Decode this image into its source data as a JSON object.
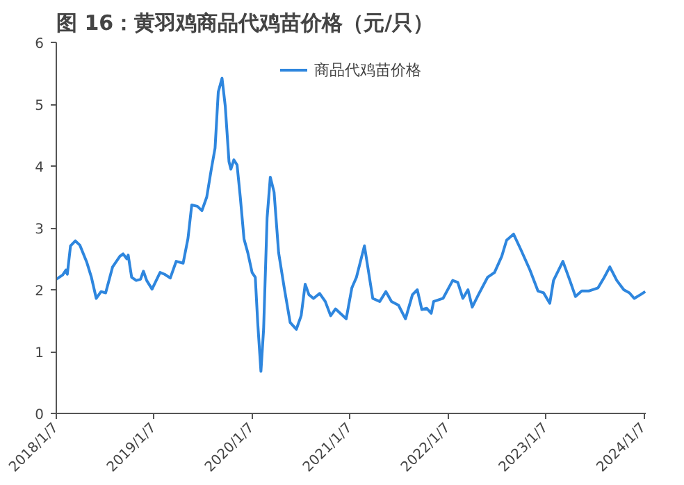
{
  "chart_data": {
    "type": "line",
    "title": "图 16：黄羽鸡商品代鸡苗价格（元/只）",
    "x": [
      "2018-01-07",
      "2018-01-31",
      "2018-02-12",
      "2018-02-17",
      "2018-03-01",
      "2018-03-19",
      "2018-04-05",
      "2018-05-01",
      "2018-05-18",
      "2018-06-05",
      "2018-06-23",
      "2018-07-10",
      "2018-08-05",
      "2018-09-01",
      "2018-09-13",
      "2018-09-27",
      "2018-10-02",
      "2018-10-15",
      "2018-11-01",
      "2018-11-17",
      "2018-11-28",
      "2018-12-10",
      "2018-12-30",
      "2019-01-29",
      "2019-02-15",
      "2019-03-08",
      "2019-03-30",
      "2019-04-25",
      "2019-05-13",
      "2019-05-27",
      "2019-06-17",
      "2019-07-04",
      "2019-07-22",
      "2019-08-08",
      "2019-08-22",
      "2019-09-03",
      "2019-09-17",
      "2019-09-29",
      "2019-10-13",
      "2019-10-20",
      "2019-10-31",
      "2019-11-12",
      "2019-11-24",
      "2019-12-08",
      "2019-12-22",
      "2020-01-07",
      "2020-01-19",
      "2020-01-28",
      "2020-02-09",
      "2020-02-19",
      "2020-03-03",
      "2020-03-15",
      "2020-03-29",
      "2020-04-15",
      "2020-05-06",
      "2020-05-28",
      "2020-06-20",
      "2020-07-08",
      "2020-07-23",
      "2020-08-06",
      "2020-08-23",
      "2020-09-15",
      "2020-10-06",
      "2020-10-26",
      "2020-11-13",
      "2020-12-23",
      "2021-01-13",
      "2021-01-30",
      "2021-03-01",
      "2021-04-01",
      "2021-04-27",
      "2021-05-20",
      "2021-06-10",
      "2021-07-06",
      "2021-08-01",
      "2021-08-27",
      "2021-09-14",
      "2021-10-01",
      "2021-10-19",
      "2021-11-05",
      "2021-11-14",
      "2021-12-19",
      "2022-01-24",
      "2022-02-12",
      "2022-03-03",
      "2022-03-22",
      "2022-04-07",
      "2022-04-30",
      "2022-06-03",
      "2022-06-29",
      "2022-07-26",
      "2022-08-13",
      "2022-09-08",
      "2022-10-04",
      "2022-11-08",
      "2022-12-08",
      "2022-12-29",
      "2023-01-21",
      "2023-02-04",
      "2023-03-11",
      "2023-04-06",
      "2023-04-27",
      "2023-05-20",
      "2023-06-15",
      "2023-07-20",
      "2023-08-12",
      "2023-09-02",
      "2023-09-28",
      "2023-10-24",
      "2023-11-14",
      "2023-12-02",
      "2023-12-25",
      "2024-01-12"
    ],
    "series": [
      {
        "name": "商品代鸡苗价格",
        "color": "#2e86de",
        "values": [
          2.17,
          2.24,
          2.32,
          2.25,
          2.71,
          2.79,
          2.72,
          2.44,
          2.2,
          1.86,
          1.97,
          1.95,
          2.37,
          2.54,
          2.58,
          2.5,
          2.56,
          2.2,
          2.15,
          2.17,
          2.3,
          2.15,
          2.01,
          2.28,
          2.25,
          2.19,
          2.46,
          2.43,
          2.83,
          3.37,
          3.35,
          3.28,
          3.5,
          3.95,
          4.29,
          5.2,
          5.42,
          4.97,
          4.07,
          3.95,
          4.1,
          4.02,
          3.5,
          2.82,
          2.6,
          2.28,
          2.2,
          1.47,
          0.68,
          1.36,
          3.16,
          3.82,
          3.58,
          2.6,
          2.03,
          1.47,
          1.36,
          1.58,
          2.09,
          1.92,
          1.86,
          1.94,
          1.81,
          1.58,
          1.69,
          1.53,
          2.03,
          2.2,
          2.71,
          1.86,
          1.81,
          1.97,
          1.81,
          1.75,
          1.53,
          1.92,
          2.0,
          1.68,
          1.7,
          1.62,
          1.81,
          1.86,
          2.15,
          2.12,
          1.86,
          2.0,
          1.72,
          1.92,
          2.2,
          2.28,
          2.54,
          2.8,
          2.9,
          2.66,
          2.32,
          1.98,
          1.95,
          1.78,
          2.15,
          2.46,
          2.15,
          1.89,
          1.98,
          1.98,
          2.03,
          2.2,
          2.37,
          2.15,
          2.0,
          1.95,
          1.86,
          1.92,
          1.97
        ]
      }
    ],
    "xlim": [
      "2018-01-07",
      "2024-01-14"
    ],
    "xticks": [
      {
        "value": "2018-01-07",
        "label": "2018/1/7"
      },
      {
        "value": "2019-01-07",
        "label": "2019/1/7"
      },
      {
        "value": "2020-01-07",
        "label": "2020/1/7"
      },
      {
        "value": "2021-01-07",
        "label": "2021/1/7"
      },
      {
        "value": "2022-01-07",
        "label": "2022/1/7"
      },
      {
        "value": "2023-01-07",
        "label": "2023/1/7"
      },
      {
        "value": "2024-01-07",
        "label": "2024/1/7"
      }
    ],
    "ylim": [
      0,
      6
    ],
    "yticks": [
      0,
      1,
      2,
      3,
      4,
      5,
      6
    ],
    "grid": false,
    "legend": "top",
    "marker": "none",
    "line_style": "solid"
  }
}
